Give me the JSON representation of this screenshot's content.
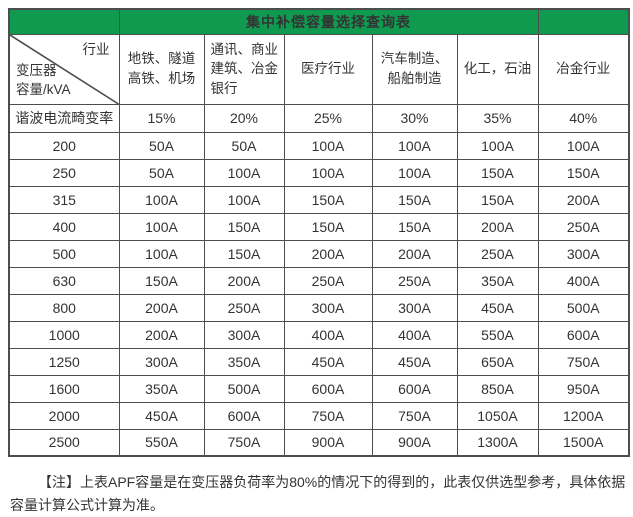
{
  "title": "集中补偿容量选择查询表",
  "corner": {
    "industry": "行业",
    "transformer": "变压器",
    "capacity_unit": "容量/kVA"
  },
  "industry_columns": [
    "地铁、隧道\n高铁、机场",
    "通讯、商业\n建筑、冶金\n银行",
    "医疗行业",
    "汽车制造、\n船舶制造",
    "化工，石油",
    "冶金行业"
  ],
  "distortion": {
    "label": "谐波电流畸变率",
    "values": [
      "15%",
      "20%",
      "25%",
      "30%",
      "35%",
      "40%"
    ]
  },
  "rows": [
    {
      "capacity": "200",
      "values": [
        "50A",
        "50A",
        "100A",
        "100A",
        "100A",
        "100A"
      ]
    },
    {
      "capacity": "250",
      "values": [
        "50A",
        "100A",
        "100A",
        "100A",
        "150A",
        "150A"
      ]
    },
    {
      "capacity": "315",
      "values": [
        "100A",
        "100A",
        "150A",
        "150A",
        "150A",
        "200A"
      ]
    },
    {
      "capacity": "400",
      "values": [
        "100A",
        "150A",
        "150A",
        "150A",
        "200A",
        "250A"
      ]
    },
    {
      "capacity": "500",
      "values": [
        "100A",
        "150A",
        "200A",
        "200A",
        "250A",
        "300A"
      ]
    },
    {
      "capacity": "630",
      "values": [
        "150A",
        "200A",
        "250A",
        "250A",
        "350A",
        "400A"
      ]
    },
    {
      "capacity": "800",
      "values": [
        "200A",
        "250A",
        "300A",
        "300A",
        "450A",
        "500A"
      ]
    },
    {
      "capacity": "1000",
      "values": [
        "200A",
        "300A",
        "400A",
        "400A",
        "550A",
        "600A"
      ]
    },
    {
      "capacity": "1250",
      "values": [
        "300A",
        "350A",
        "450A",
        "450A",
        "650A",
        "750A"
      ]
    },
    {
      "capacity": "1600",
      "values": [
        "350A",
        "500A",
        "600A",
        "600A",
        "850A",
        "950A"
      ]
    },
    {
      "capacity": "2000",
      "values": [
        "450A",
        "600A",
        "750A",
        "750A",
        "1050A",
        "1200A"
      ]
    },
    {
      "capacity": "2500",
      "values": [
        "550A",
        "750A",
        "900A",
        "900A",
        "1300A",
        "1500A"
      ]
    }
  ],
  "note": "【注】上表APF容量是在变压器负荷率为80%的情况下的得到的，此表仅供选型参考，具体依据容量计算公式计算为准。",
  "colors": {
    "header_green": "#0f9a50",
    "border": "#4d4d4d",
    "text": "#333333",
    "title_text": "#ffffff"
  }
}
